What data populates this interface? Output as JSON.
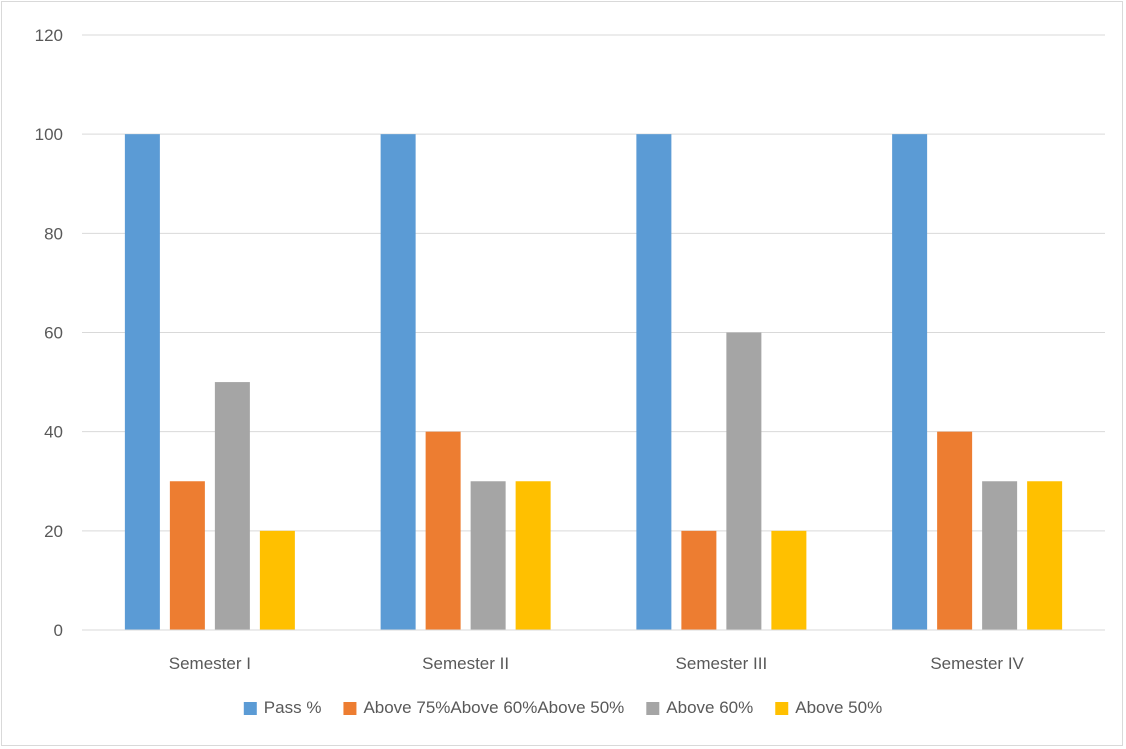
{
  "chart_data": {
    "type": "bar",
    "title": "",
    "xlabel": "",
    "ylabel": "",
    "categories": [
      "Semester I",
      "Semester II",
      "Semester III",
      "Semester IV"
    ],
    "ylim": [
      0,
      120
    ],
    "yticks": [
      "0",
      "20",
      "40",
      "60",
      "80",
      "100",
      "120"
    ],
    "grid": true,
    "legend_position": "bottom",
    "series": [
      {
        "name": "Pass %",
        "color": "#5b9bd5",
        "values": [
          100,
          100,
          100,
          100
        ]
      },
      {
        "name": "Above 75%Above 60%Above 50%",
        "color": "#ed7d31",
        "values": [
          30,
          40,
          20,
          40
        ]
      },
      {
        "name": "Above 60%",
        "color": "#a5a5a5",
        "values": [
          50,
          30,
          60,
          30
        ]
      },
      {
        "name": "Above 50%",
        "color": "#ffc000",
        "values": [
          20,
          30,
          20,
          30
        ]
      }
    ]
  }
}
